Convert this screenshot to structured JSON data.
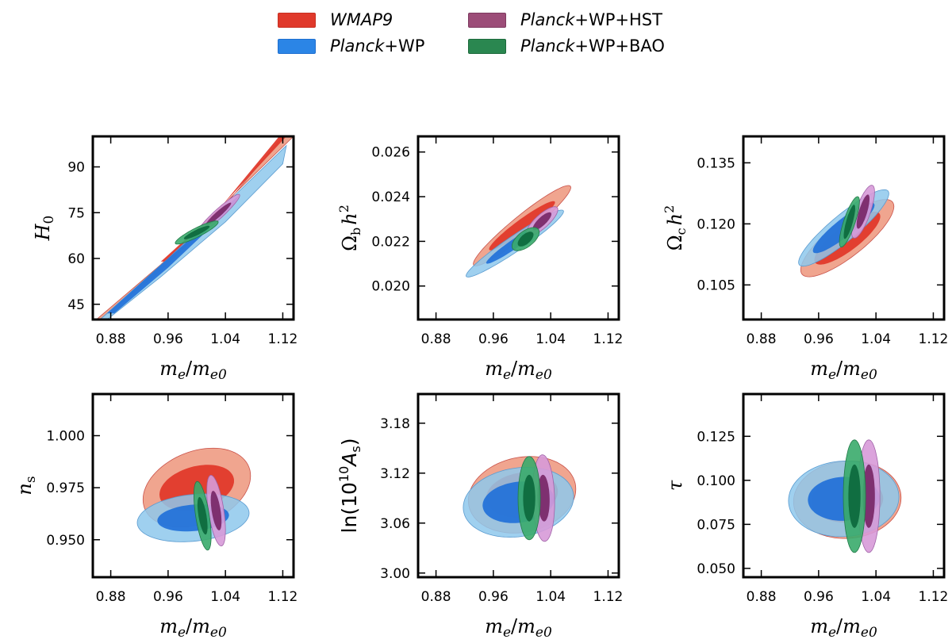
{
  "legend": {
    "items": [
      {
        "label_italic": "WMAP9",
        "label_rest": "",
        "color": "#e0392b",
        "border": "#c83022"
      },
      {
        "label_italic": "Planck",
        "label_rest": "+WP",
        "color": "#2b85e6",
        "border": "#1f6fd0"
      },
      {
        "label_italic": "Planck",
        "label_rest": "+WP+HST",
        "color": "#9c4d78",
        "border": "#7e3a60"
      },
      {
        "label_italic": "Planck",
        "label_rest": "+WP+BAO",
        "color": "#2a8750",
        "border": "#1d6a3c"
      }
    ]
  },
  "chart_data": [
    {
      "type": "contour",
      "xlabel": "m_e / m_e0",
      "ylabel": "H_0",
      "xlim": [
        0.855,
        1.135
      ],
      "ylim": [
        40,
        100
      ],
      "xticks": [
        "0.88",
        "0.96",
        "1.04",
        "1.12"
      ],
      "yticks": [
        "45",
        "60",
        "75",
        "90"
      ],
      "series": [
        {
          "name": "WMAP9",
          "kind": "band",
          "outer": [
            [
              0.86,
              40
            ],
            [
              0.95,
              58
            ],
            [
              1.03,
              76
            ],
            [
              1.135,
              100
            ],
            [
              1.12,
              100
            ],
            [
              1.02,
              72
            ],
            [
              0.94,
              54
            ],
            [
              0.865,
              40
            ]
          ],
          "inner": [
            [
              0.95,
              59
            ],
            [
              1.03,
              76
            ],
            [
              1.125,
              100
            ],
            [
              1.115,
              100
            ],
            [
              1.02,
              73
            ],
            [
              0.96,
              59
            ]
          ]
        },
        {
          "name": "Planck+WP",
          "kind": "band",
          "outer": [
            [
              0.865,
              40
            ],
            [
              0.96,
              60
            ],
            [
              1.05,
              80
            ],
            [
              1.125,
              97
            ],
            [
              1.12,
              91
            ],
            [
              1.04,
              72
            ],
            [
              0.95,
              54
            ],
            [
              0.875,
              40
            ]
          ],
          "inner": [
            [
              0.875,
              42
            ],
            [
              0.96,
              60
            ],
            [
              1.06,
              81
            ],
            [
              1.05,
              77
            ],
            [
              0.96,
              57
            ],
            [
              0.885,
              42
            ]
          ]
        },
        {
          "name": "Planck+WP+HST",
          "center": [
            1.03,
            74.5
          ],
          "sx": [
            0.03,
            0.018
          ],
          "sy": [
            6.5,
            3.8
          ],
          "rho": 0.95
        },
        {
          "name": "Planck+WP+BAO",
          "center": [
            1.0,
            68.5
          ],
          "sx": [
            0.03,
            0.018
          ],
          "sy": [
            3.8,
            2.2
          ],
          "rho": 0.9
        }
      ]
    },
    {
      "type": "contour",
      "xlabel": "m_e / m_e0",
      "ylabel": "Ω_b h^2",
      "xlim": [
        0.855,
        1.135
      ],
      "ylim": [
        0.0185,
        0.0267
      ],
      "xticks": [
        "0.88",
        "0.96",
        "1.04",
        "1.12"
      ],
      "yticks": [
        "0.020",
        "0.022",
        "0.024",
        "0.026"
      ],
      "series": [
        {
          "name": "WMAP9",
          "center": [
            1.0,
            0.0227
          ],
          "sx": [
            0.068,
            0.046
          ],
          "sy": [
            0.0018,
            0.0011
          ],
          "rho": 0.95
        },
        {
          "name": "Planck+WP",
          "center": [
            0.99,
            0.0219
          ],
          "sx": [
            0.068,
            0.04
          ],
          "sy": [
            0.0015,
            0.0009
          ],
          "rho": 0.96
        },
        {
          "name": "Planck+WP+HST",
          "center": [
            1.028,
            0.0229
          ],
          "sx": [
            0.022,
            0.013
          ],
          "sy": [
            0.00065,
            0.0004
          ],
          "rho": 0.8
        },
        {
          "name": "Planck+WP+BAO",
          "center": [
            1.005,
            0.0221
          ],
          "sx": [
            0.019,
            0.011
          ],
          "sy": [
            0.00052,
            0.00033
          ],
          "rho": 0.6
        }
      ]
    },
    {
      "type": "contour",
      "xlabel": "m_e / m_e0",
      "ylabel": "Ω_c h^2",
      "xlim": [
        0.855,
        1.135
      ],
      "ylim": [
        0.0965,
        0.1415
      ],
      "xticks": [
        "0.88",
        "0.96",
        "1.04",
        "1.12"
      ],
      "yticks": [
        "0.105",
        "0.120",
        "0.135"
      ],
      "series": [
        {
          "name": "WMAP9",
          "center": [
            1.0,
            0.1165
          ],
          "sx": [
            0.065,
            0.046
          ],
          "sy": [
            0.0095,
            0.0065
          ],
          "rho": 0.82
        },
        {
          "name": "Planck+WP",
          "center": [
            0.995,
            0.119
          ],
          "sx": [
            0.063,
            0.043
          ],
          "sy": [
            0.0094,
            0.0062
          ],
          "rho": 0.9
        },
        {
          "name": "Planck+WP+HST",
          "center": [
            1.022,
            0.123
          ],
          "sx": [
            0.016,
            0.009
          ],
          "sy": [
            0.0065,
            0.0042
          ],
          "rho": 0.75
        },
        {
          "name": "Planck+WP+BAO",
          "center": [
            1.003,
            0.1205
          ],
          "sx": [
            0.014,
            0.008
          ],
          "sy": [
            0.0062,
            0.0042
          ],
          "rho": 0.8
        }
      ]
    },
    {
      "type": "contour",
      "xlabel": "m_e / m_e0",
      "ylabel": "n_s",
      "xlim": [
        0.855,
        1.135
      ],
      "ylim": [
        0.932,
        1.02
      ],
      "xticks": [
        "0.88",
        "0.96",
        "1.04",
        "1.12"
      ],
      "yticks": [
        "0.950",
        "0.975",
        "1.000"
      ],
      "series": [
        {
          "name": "WMAP9",
          "center": [
            1.0,
            0.975
          ],
          "sx": [
            0.075,
            0.052
          ],
          "sy": [
            0.019,
            0.011
          ],
          "rho": 0.3
        },
        {
          "name": "Planck+WP",
          "center": [
            0.995,
            0.9605
          ],
          "sx": [
            0.078,
            0.05
          ],
          "sy": [
            0.0115,
            0.0065
          ],
          "rho": 0.2
        },
        {
          "name": "Planck+WP+HST",
          "center": [
            1.027,
            0.964
          ],
          "sx": [
            0.013,
            0.0075
          ],
          "sy": [
            0.017,
            0.0095
          ],
          "rho": -0.55
        },
        {
          "name": "Planck+WP+BAO",
          "center": [
            1.008,
            0.9615
          ],
          "sx": [
            0.012,
            0.007
          ],
          "sy": [
            0.0165,
            0.009
          ],
          "rho": -0.6
        }
      ]
    },
    {
      "type": "contour",
      "xlabel": "m_e / m_e0",
      "ylabel": "ln(10^10 A_s)",
      "xlim": [
        0.855,
        1.135
      ],
      "ylim": [
        2.995,
        3.215
      ],
      "xticks": [
        "0.88",
        "0.96",
        "1.04",
        "1.12"
      ],
      "yticks": [
        "3.00",
        "3.06",
        "3.12",
        "3.18"
      ],
      "series": [
        {
          "name": "WMAP9",
          "center": [
            1.0,
            3.094
          ],
          "sx": [
            0.075,
            0.05
          ],
          "sy": [
            0.046,
            0.027
          ],
          "rho": 0.15
        },
        {
          "name": "Planck+WP",
          "center": [
            0.995,
            3.085
          ],
          "sx": [
            0.077,
            0.05
          ],
          "sy": [
            0.042,
            0.025
          ],
          "rho": 0.15
        },
        {
          "name": "Planck+WP+HST",
          "center": [
            1.03,
            3.09
          ],
          "sx": [
            0.0155,
            0.0085
          ],
          "sy": [
            0.052,
            0.028
          ],
          "rho": -0.1
        },
        {
          "name": "Planck+WP+BAO",
          "center": [
            1.01,
            3.09
          ],
          "sx": [
            0.0155,
            0.0085
          ],
          "sy": [
            0.05,
            0.028
          ],
          "rho": 0.0
        }
      ]
    },
    {
      "type": "contour",
      "xlabel": "m_e / m_e0",
      "ylabel": "τ",
      "xlim": [
        0.855,
        1.135
      ],
      "ylim": [
        0.045,
        0.149
      ],
      "xticks": [
        "0.88",
        "0.96",
        "1.04",
        "1.12"
      ],
      "yticks": [
        "0.050",
        "0.075",
        "0.100",
        "0.125"
      ],
      "series": [
        {
          "name": "WMAP9",
          "center": [
            1.0,
            0.089
          ],
          "sx": [
            0.075,
            0.05
          ],
          "sy": [
            0.022,
            0.013
          ],
          "rho": 0.05
        },
        {
          "name": "Planck+WP",
          "center": [
            0.995,
            0.0895
          ],
          "sx": [
            0.077,
            0.05
          ],
          "sy": [
            0.0215,
            0.0125
          ],
          "rho": 0.05
        },
        {
          "name": "Planck+WP+HST",
          "center": [
            1.03,
            0.091
          ],
          "sx": [
            0.0155,
            0.0085
          ],
          "sy": [
            0.032,
            0.018
          ],
          "rho": 0.0
        },
        {
          "name": "Planck+WP+BAO",
          "center": [
            1.01,
            0.091
          ],
          "sx": [
            0.0155,
            0.0085
          ],
          "sy": [
            0.032,
            0.018
          ],
          "rho": 0.0
        }
      ]
    }
  ],
  "colors": {
    "WMAP9": {
      "outer": "#f0a58f",
      "inner": "#e0392b",
      "stroke": "#c9524a"
    },
    "Planck+WP": {
      "outer": "#8ec8ec",
      "inner": "#1f6fd8",
      "stroke": "#5a9bd0"
    },
    "Planck+WP+HST": {
      "outer": "#d79ad8",
      "inner": "#7a2a6a",
      "stroke": "#a064a8"
    },
    "Planck+WP+BAO": {
      "outer": "#3aab6c",
      "inner": "#0e6a3e",
      "stroke": "#227a48"
    }
  }
}
